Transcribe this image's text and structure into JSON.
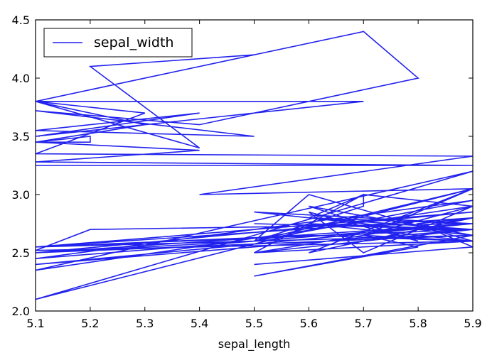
{
  "chart_data": {
    "type": "line",
    "xlabel": "sepal_length",
    "ylabel": "",
    "xlim": [
      5.1,
      5.9
    ],
    "ylim": [
      2.0,
      4.5
    ],
    "xticks": [
      "5.1",
      "5.2",
      "5.3",
      "5.4",
      "5.5",
      "5.6",
      "5.7",
      "5.8",
      "5.9"
    ],
    "yticks": [
      "2.0",
      "2.5",
      "3.0",
      "3.5",
      "4.0",
      "4.5"
    ],
    "legend": "top-left",
    "grid": false,
    "series": [
      {
        "name": "sepal_width",
        "color": "#2222ee",
        "x": [
          5.1,
          5.9,
          5.1,
          5.4,
          5.1,
          5.2,
          5.2,
          5.1,
          5.3,
          5.1,
          5.5,
          5.2,
          5.4,
          5.1,
          5.7,
          5.8,
          5.4,
          5.1,
          5.5,
          5.1,
          5.4,
          5.1,
          5.7,
          5.1,
          5.3,
          5.1,
          5.9,
          5.4,
          5.9,
          5.5,
          5.6,
          5.9,
          5.5,
          5.7,
          5.9,
          5.1,
          5.9,
          5.1,
          5.9,
          5.5,
          5.7,
          5.7,
          5.6,
          5.9,
          5.5,
          5.9,
          5.1,
          5.9,
          5.1,
          5.5,
          5.9,
          5.1,
          5.9,
          5.1,
          5.9,
          5.1,
          5.9,
          5.6,
          5.9,
          5.7,
          5.9,
          5.7,
          5.6,
          5.8,
          5.6,
          5.9,
          5.6,
          5.9,
          5.5,
          5.9,
          5.5,
          5.8,
          5.7,
          5.9,
          5.1,
          5.2,
          5.9,
          5.1,
          5.9,
          5.1,
          5.6,
          5.9,
          5.6,
          5.9,
          5.5,
          5.9,
          5.8,
          5.9,
          5.8,
          5.9,
          5.5,
          5.9
        ],
        "values": [
          3.25,
          3.25,
          3.28,
          3.38,
          3.45,
          3.45,
          3.5,
          3.45,
          3.6,
          3.8,
          4.2,
          4.1,
          3.4,
          3.8,
          4.4,
          4.0,
          3.6,
          3.72,
          3.5,
          3.55,
          3.7,
          3.5,
          3.8,
          3.8,
          3.7,
          3.35,
          3.33,
          3.0,
          3.05,
          2.6,
          3.0,
          2.6,
          2.5,
          3.0,
          2.9,
          2.35,
          3.2,
          2.1,
          3.05,
          2.6,
          2.9,
          3.0,
          2.8,
          2.7,
          2.5,
          2.8,
          2.55,
          2.85,
          2.5,
          2.6,
          2.95,
          2.45,
          2.75,
          2.4,
          2.7,
          2.55,
          2.8,
          2.5,
          3.05,
          2.65,
          2.9,
          2.5,
          2.85,
          2.6,
          2.9,
          2.65,
          2.8,
          2.75,
          2.85,
          2.65,
          2.3,
          2.55,
          2.65,
          2.6,
          2.52,
          2.7,
          2.75,
          2.5,
          2.65,
          2.55,
          2.65,
          2.6,
          2.75,
          2.7,
          2.75,
          2.7,
          2.7,
          2.8,
          2.75,
          2.55,
          2.4,
          2.55
        ]
      }
    ]
  }
}
